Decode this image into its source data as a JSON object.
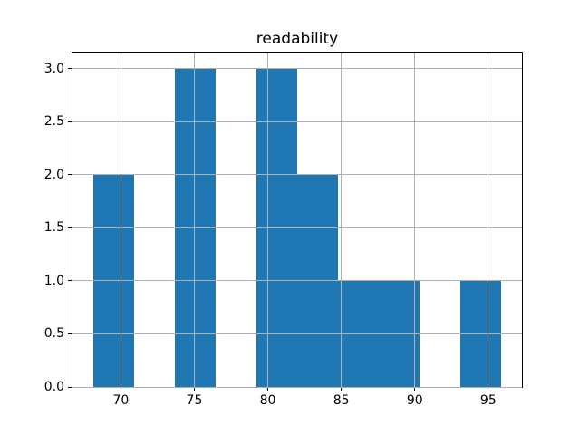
{
  "chart_data": {
    "type": "bar",
    "subtype": "histogram",
    "title": "readability",
    "xlabel": "",
    "ylabel": "",
    "bin_edges": [
      68.1,
      70.88,
      73.66,
      76.44,
      79.22,
      82.0,
      84.78,
      87.56,
      90.34,
      93.12,
      95.9
    ],
    "counts": [
      2,
      0,
      3,
      0,
      3,
      2,
      1,
      1,
      0,
      1
    ],
    "xticks": [
      70,
      75,
      80,
      85,
      90,
      95
    ],
    "xtick_labels": [
      "70",
      "75",
      "80",
      "85",
      "90",
      "95"
    ],
    "yticks": [
      0,
      0.5,
      1,
      1.5,
      2,
      2.5,
      3
    ],
    "ytick_labels": [
      "0.0",
      "0.5",
      "1.0",
      "1.5",
      "2.0",
      "2.5",
      "3.0"
    ],
    "xlim": [
      66.71,
      97.29
    ],
    "ylim": [
      0,
      3.15
    ],
    "grid": true,
    "legend_position": "none",
    "colors": {
      "bar": "#1f77b4",
      "grid": "#b0b0b0",
      "spine": "#000000",
      "text": "#000000",
      "background": "#ffffff"
    }
  }
}
